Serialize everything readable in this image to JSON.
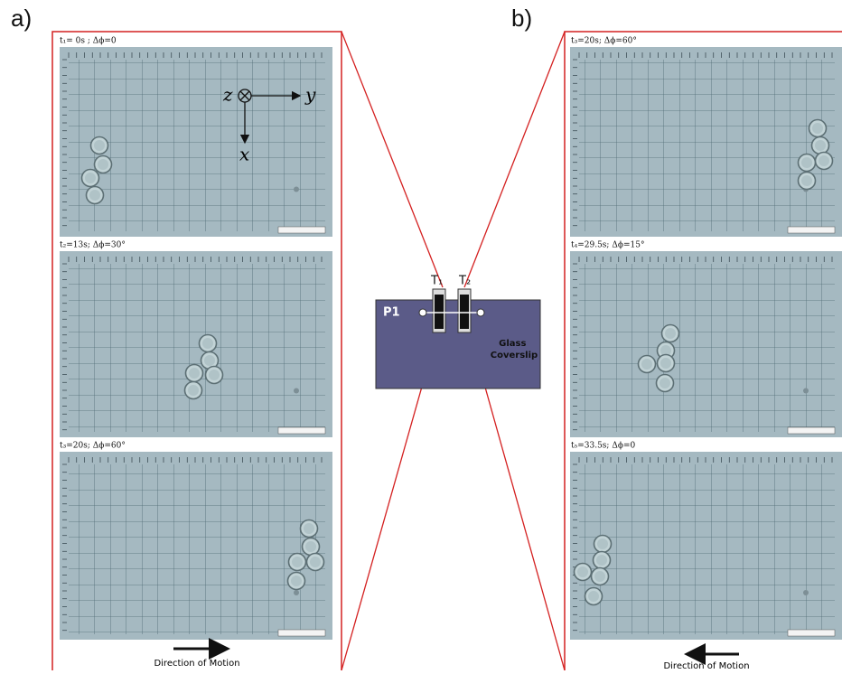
{
  "left_panel": {
    "label": "a)",
    "frames": [
      {
        "caption": "t₁= 0s ; Δϕ=0"
      },
      {
        "caption": "t₂=13s; Δϕ=30°"
      },
      {
        "caption": "t₃=20s; Δϕ=60°"
      }
    ],
    "axes": {
      "z": "z",
      "y": "y",
      "x": "x"
    },
    "direction": "Direction of Motion"
  },
  "right_panel": {
    "label": "b)",
    "frames": [
      {
        "caption": "t₃=20s; Δϕ=60°"
      },
      {
        "caption": "t₄=29.5s; Δϕ=15°"
      },
      {
        "caption": "t₅=33.5s; Δϕ=0"
      }
    ],
    "direction": "Direction of Motion"
  },
  "diagram": {
    "plate": "P1",
    "trap_1": "T₁",
    "trap_2": "T₂",
    "coverslip": "Glass Coverslip"
  }
}
